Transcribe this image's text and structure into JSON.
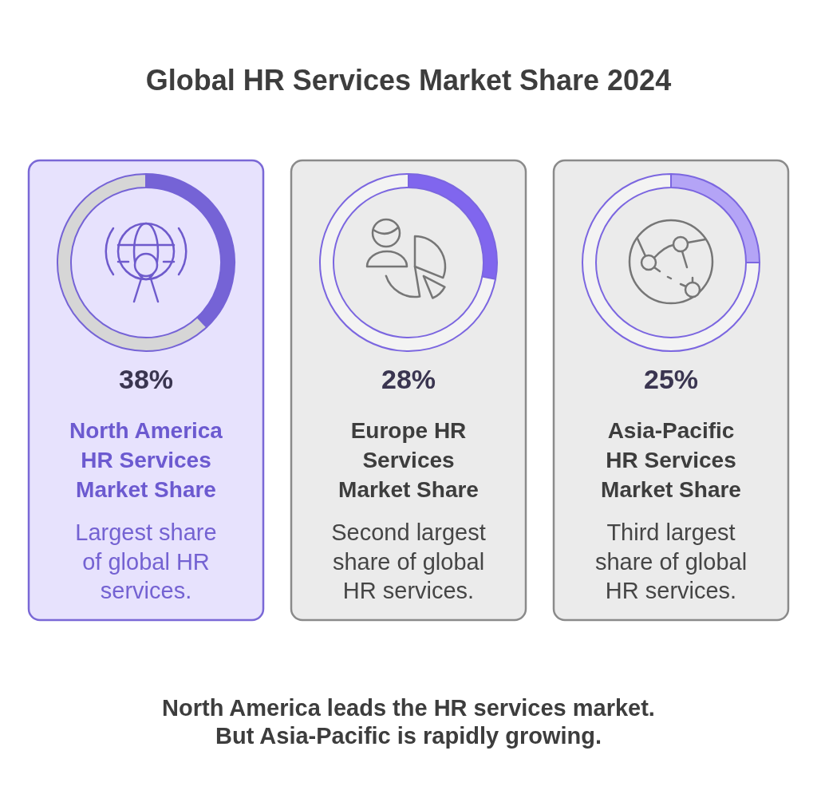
{
  "chart_data": [
    {
      "type": "other",
      "title": "Global HR Services Market Share 2024"
    },
    {
      "type": "donut",
      "title": "North America\nHR Services\nMarket Share",
      "subtitle": "Largest share\nof global HR\nservices.",
      "categories": [
        null,
        null
      ],
      "values": [
        38,
        62
      ],
      "colors": [
        "#7563d6",
        "#d6d6d6"
      ],
      "annotations": [
        "38%"
      ]
    },
    {
      "type": "donut",
      "title": "Europe HR\nServices\nMarket Share",
      "subtitle": "Second largest\nshare of global\nHR services.",
      "categories": [
        null,
        null
      ],
      "values": [
        28,
        72
      ],
      "colors": [
        "#8066ee",
        "#f3f3f3"
      ],
      "annotations": [
        "28%"
      ]
    },
    {
      "type": "donut",
      "title": "Asia-Pacific\nHR Services\nMarket Share",
      "subtitle": "Third largest\nshare of global\nHR services.",
      "categories": [
        null,
        null
      ],
      "values": [
        25,
        75
      ],
      "colors": [
        "#b4a4f6",
        "#f3f3f3"
      ],
      "annotations": [
        "25%"
      ]
    },
    {
      "type": "other",
      "annotations": [
        "North America leads the HR services market.",
        "But Asia-Pacific is rapidly growing."
      ]
    }
  ]
}
